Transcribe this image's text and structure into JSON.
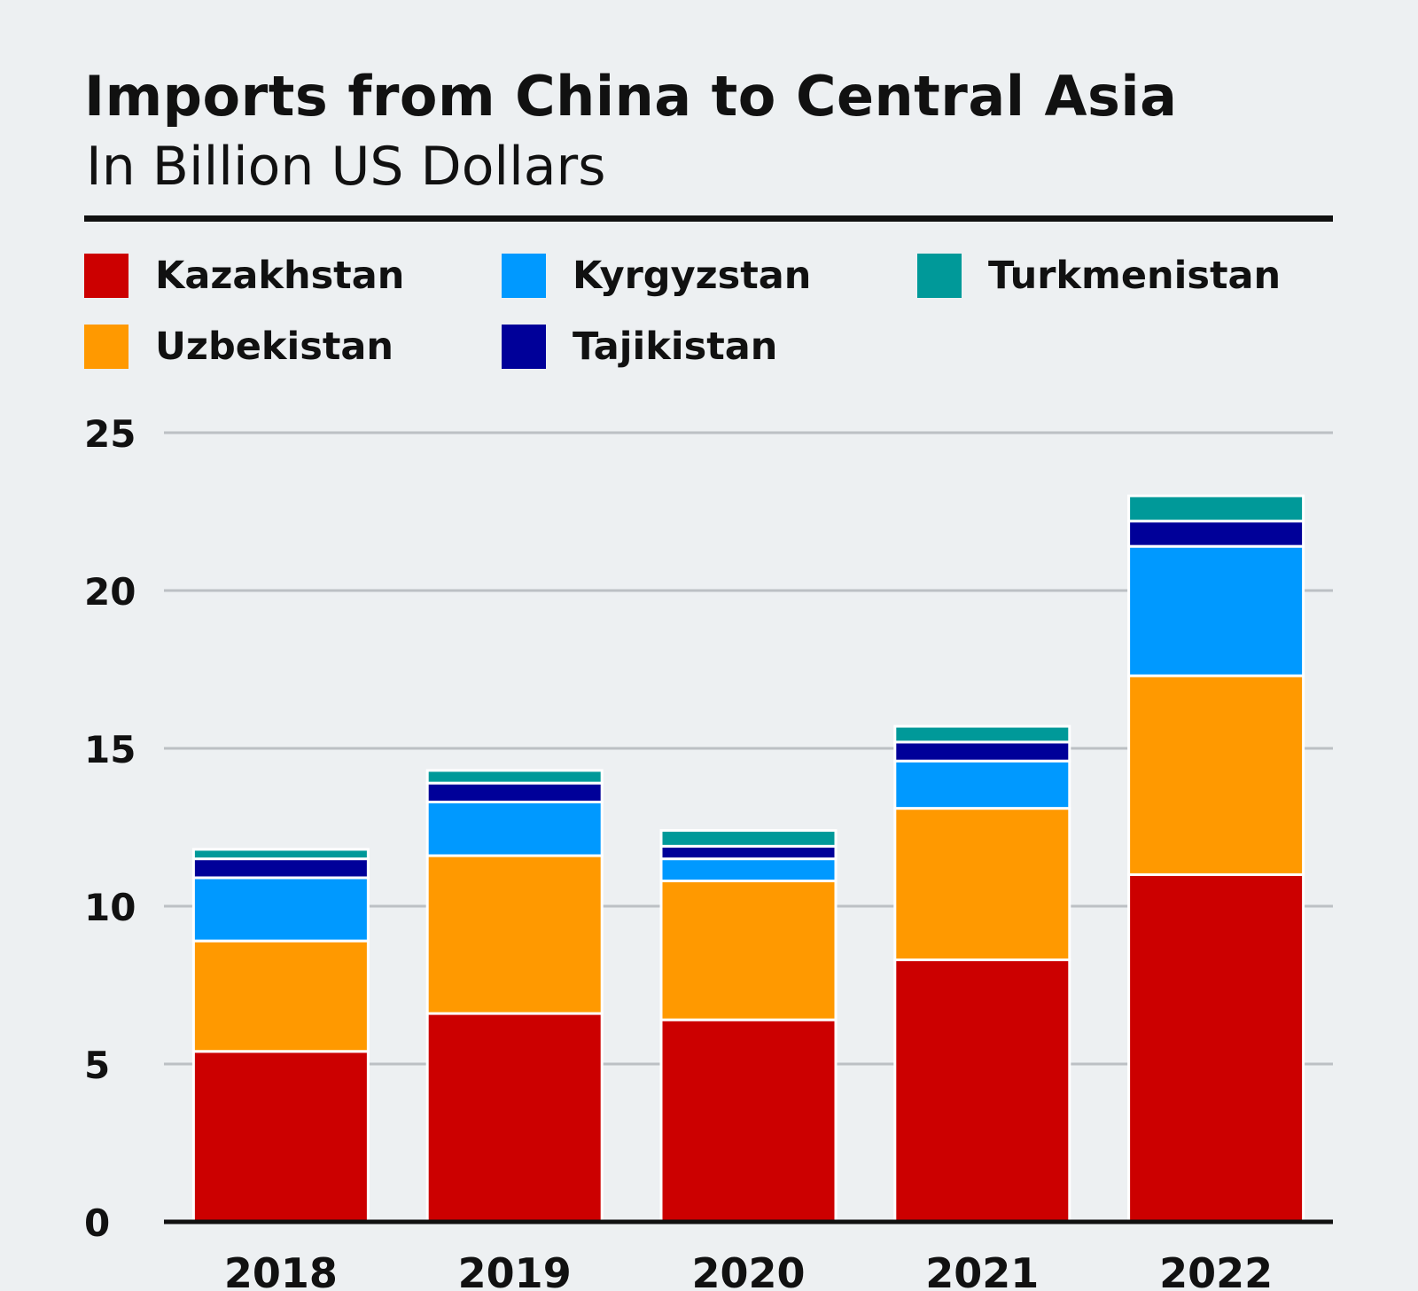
{
  "title": "Imports from China to Central Asia",
  "subtitle": "In Billion US Dollars",
  "chart_data": {
    "type": "bar",
    "stacked": true,
    "categories": [
      "2018",
      "2019",
      "2020",
      "2021",
      "2022"
    ],
    "series": [
      {
        "name": "Kazakhstan",
        "color": "#cc0000",
        "values": [
          5.4,
          6.6,
          6.4,
          8.3,
          11.0
        ]
      },
      {
        "name": "Uzbekistan",
        "color": "#ff9900",
        "values": [
          3.5,
          5.0,
          4.4,
          4.8,
          6.3
        ]
      },
      {
        "name": "Kyrgyzstan",
        "color": "#0099ff",
        "values": [
          2.0,
          1.7,
          0.7,
          1.5,
          4.1
        ]
      },
      {
        "name": "Tajikistan",
        "color": "#000099",
        "values": [
          0.6,
          0.6,
          0.4,
          0.6,
          0.8
        ]
      },
      {
        "name": "Turkmenistan",
        "color": "#009999",
        "values": [
          0.3,
          0.4,
          0.5,
          0.5,
          0.8
        ]
      }
    ],
    "ylim": [
      0,
      25
    ],
    "yticks": [
      "0",
      "5",
      "10",
      "15",
      "20",
      "25"
    ],
    "grid": true,
    "legend_position": "top"
  }
}
